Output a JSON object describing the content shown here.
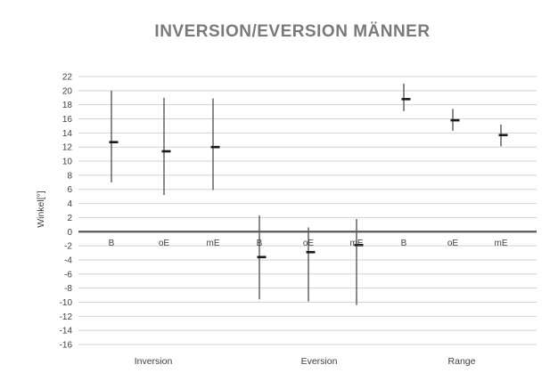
{
  "chart_data": {
    "type": "line",
    "subtype": "high-low-close-whisker",
    "title": "INVERSION/EVERSION MÄNNER",
    "xlabel": "",
    "ylabel": "Winkel[°]",
    "ylim": [
      -16,
      22
    ],
    "ytick_step": 2,
    "grid": true,
    "legend": "none",
    "groups": [
      {
        "label": "Inversion",
        "points": [
          {
            "label": "B",
            "high": 20.0,
            "low": 7.0,
            "close": 12.7
          },
          {
            "label": "oE",
            "high": 19.0,
            "low": 5.2,
            "close": 11.4
          },
          {
            "label": "mE",
            "high": 18.9,
            "low": 5.9,
            "close": 12.0
          }
        ]
      },
      {
        "label": "Eversion",
        "points": [
          {
            "label": "B",
            "high": 2.3,
            "low": -9.6,
            "close": -3.6
          },
          {
            "label": "oE",
            "high": 0.6,
            "low": -9.9,
            "close": -2.9
          },
          {
            "label": "mE",
            "high": 1.8,
            "low": -10.4,
            "close": -1.9
          }
        ]
      },
      {
        "label": "Range",
        "points": [
          {
            "label": "B",
            "high": 21.0,
            "low": 17.1,
            "close": 18.8
          },
          {
            "label": "oE",
            "high": 17.4,
            "low": 14.3,
            "close": 15.8
          },
          {
            "label": "mE",
            "high": 15.2,
            "low": 12.1,
            "close": 13.7
          }
        ]
      }
    ],
    "colors": {
      "whisker": "#595959",
      "close_marker": "#1a1a1a",
      "gridline": "#d2d2d2",
      "zero_line": "#595959",
      "title": "#7a7a7a",
      "axis_text": "#404040"
    }
  }
}
